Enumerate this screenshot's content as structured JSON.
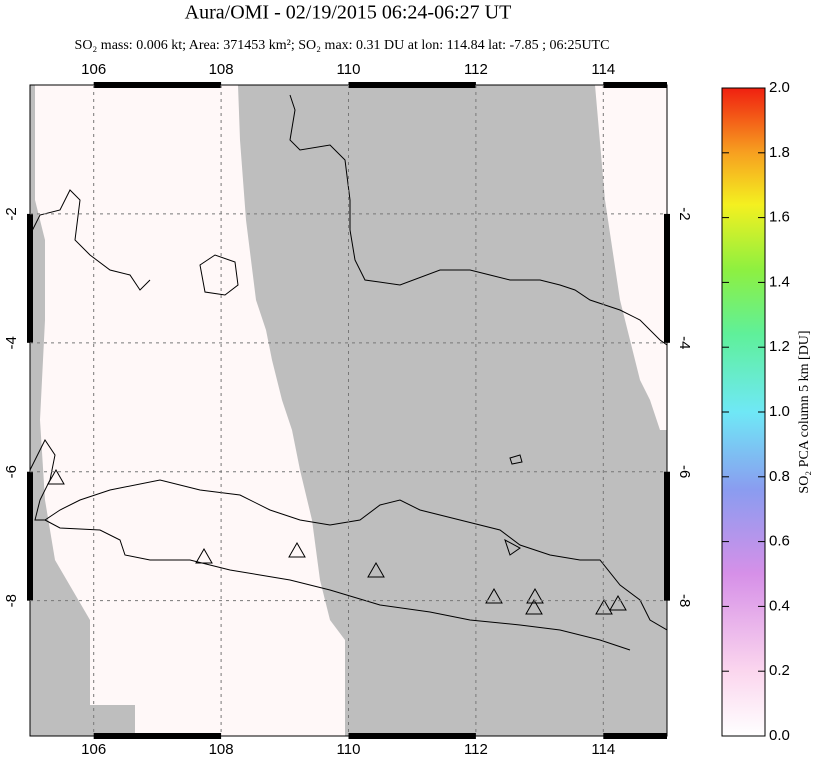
{
  "chart_data": {
    "type": "map",
    "title": "Aura/OMI - 02/19/2015 06:24-06:27 UT",
    "subtitle": "SO₂ mass: 0.006 kt; Area: 371453 km²; SO₂ max: 0.31 DU at lon: 114.84 lat: -7.85 ; 06:25UTC",
    "xlim": [
      105,
      115
    ],
    "xticks": [
      106,
      108,
      110,
      112,
      114
    ],
    "ylim": [
      -10.1,
      0
    ],
    "yticks": [
      -2,
      -4,
      -6,
      -8
    ],
    "grid": true,
    "colorbar": {
      "label": "SO₂ PCA column 5 km [DU]",
      "lim": [
        0,
        2
      ],
      "ticks": [
        {
          "value": 0,
          "label": "0.0"
        },
        0.2,
        0.4,
        0.6,
        0.8,
        {
          "value": 1,
          "label": "1.0"
        },
        1.2,
        1.4,
        1.6,
        1.8,
        {
          "value": 2,
          "label": "2.0"
        }
      ]
    }
  }
}
